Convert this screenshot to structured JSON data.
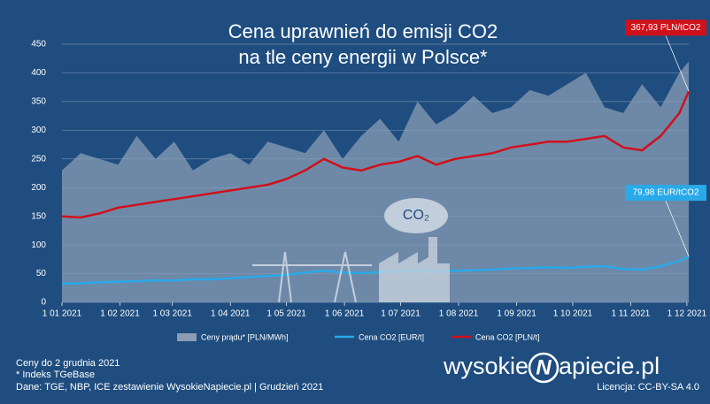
{
  "chart_data": {
    "type": "line",
    "title": [
      "Cena uprawnień do emisji CO2",
      "na tle ceny energii w Polsce*"
    ],
    "x": [
      "2021-01-01",
      "2021-01-11",
      "2021-01-21",
      "2021-01-31",
      "2021-02-10",
      "2021-02-20",
      "2021-03-02",
      "2021-03-12",
      "2021-03-22",
      "2021-04-01",
      "2021-04-11",
      "2021-04-21",
      "2021-05-01",
      "2021-05-11",
      "2021-05-21",
      "2021-05-31",
      "2021-06-10",
      "2021-06-20",
      "2021-06-30",
      "2021-07-10",
      "2021-07-20",
      "2021-07-30",
      "2021-08-09",
      "2021-08-19",
      "2021-08-29",
      "2021-09-08",
      "2021-09-18",
      "2021-09-28",
      "2021-10-08",
      "2021-10-18",
      "2021-10-28",
      "2021-11-07",
      "2021-11-17",
      "2021-11-27",
      "2021-12-02"
    ],
    "series": [
      {
        "name": "Ceny prądu* [PLN/MWh]",
        "kind": "area",
        "color": "#8a9db5",
        "values": [
          230,
          260,
          250,
          240,
          290,
          250,
          280,
          230,
          250,
          260,
          240,
          280,
          270,
          260,
          300,
          250,
          290,
          320,
          280,
          350,
          310,
          330,
          360,
          330,
          340,
          370,
          360,
          380,
          400,
          340,
          330,
          380,
          340,
          400,
          420
        ]
      },
      {
        "name": "Cena CO2 [EUR/t]",
        "color": "#29a9e8",
        "end_label": "79,98 EUR/tCO2",
        "values": [
          33,
          33,
          35,
          36,
          37,
          38,
          38,
          40,
          40,
          42,
          44,
          46,
          48,
          52,
          55,
          52,
          51,
          53,
          54,
          56,
          53,
          55,
          56,
          57,
          59,
          60,
          61,
          60,
          62,
          63,
          58,
          57,
          63,
          72,
          79.98
        ]
      },
      {
        "name": "Cena CO2 [PLN/t]",
        "color": "#d0101a",
        "end_label": "367,93 PLN/tCO2",
        "values": [
          150,
          148,
          155,
          165,
          170,
          175,
          180,
          185,
          190,
          195,
          200,
          205,
          215,
          230,
          250,
          235,
          230,
          240,
          245,
          255,
          240,
          250,
          255,
          260,
          270,
          275,
          280,
          280,
          285,
          290,
          270,
          265,
          290,
          330,
          367.93
        ]
      }
    ],
    "xlim": [
      "2021-01-01",
      "2021-12-02"
    ],
    "xticks": [
      {
        "value": "2021-01-01",
        "label": "1 01 2021"
      },
      {
        "value": "2021-02-01",
        "label": "1 02 2021"
      },
      {
        "value": "2021-03-01",
        "label": "1 03 2021"
      },
      {
        "value": "2021-04-01",
        "label": "1 04 2021"
      },
      {
        "value": "2021-05-01",
        "label": "1 05 2021"
      },
      {
        "value": "2021-06-01",
        "label": "1 06 2021"
      },
      {
        "value": "2021-07-01",
        "label": "1 07 2021"
      },
      {
        "value": "2021-08-01",
        "label": "1 08 2021"
      },
      {
        "value": "2021-09-01",
        "label": "1 09 2021"
      },
      {
        "value": "2021-10-01",
        "label": "1 10 2021"
      },
      {
        "value": "2021-11-01",
        "label": "1 11 2021"
      },
      {
        "value": "2021-12-01",
        "label": "1 12 2021"
      }
    ],
    "ylim": [
      0,
      450
    ],
    "yticks": [
      0,
      50,
      100,
      150,
      200,
      250,
      300,
      350,
      400,
      450
    ],
    "grid": true,
    "notes": [
      "Ceny do 2 grudnia 2021",
      "* Indeks TGeBase",
      "Dane: TGE, NBP, ICE zestawienie WysokieNapiecie.pl  |  Grudzień 2021"
    ],
    "brand": [
      "wysokie",
      "N",
      "apiecie.pl"
    ],
    "license": "Licencja: CC-BY-SA 4.0"
  }
}
